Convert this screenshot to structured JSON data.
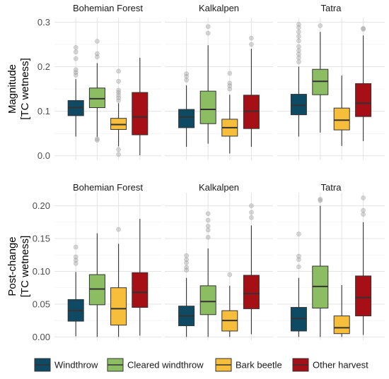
{
  "colors": {
    "Windthrow": "#0e4a63",
    "Cleared windthrow": "#8dbd63",
    "Bark beetle": "#f7be3b",
    "Other harvest": "#a50f15"
  },
  "legend": {
    "items": [
      {
        "name": "Windthrow"
      },
      {
        "name": "Cleared windthrow"
      },
      {
        "name": "Bark beetle"
      },
      {
        "name": "Other harvest"
      }
    ],
    "position": "bottom"
  },
  "chart_data": [
    {
      "type": "box",
      "row": "magnitude",
      "ylabel": [
        "Magnitude",
        "[TC wetness]"
      ],
      "ylim": [
        -0.01,
        0.31
      ],
      "yticks": [
        0.0,
        0.1,
        0.2,
        0.3
      ],
      "ytick_labels": [
        "0.0",
        "0.1",
        "0.2",
        "0.3"
      ],
      "categories": [
        "Windthrow",
        "Cleared windthrow",
        "Bark beetle",
        "Other harvest"
      ],
      "panels": [
        {
          "title": "Bohemian Forest",
          "boxes": [
            {
              "category": "Windthrow",
              "whislo": 0.043,
              "q1": 0.09,
              "med": 0.108,
              "q3": 0.124,
              "whishi": 0.172,
              "outliers": [
                0.181,
                0.187,
                0.193,
                0.218,
                0.233,
                0.243
              ]
            },
            {
              "category": "Cleared windthrow",
              "whislo": 0.042,
              "q1": 0.108,
              "med": 0.128,
              "q3": 0.152,
              "whishi": 0.208,
              "outliers": [
                0.035,
                0.038,
                0.222,
                0.229,
                0.257
              ]
            },
            {
              "category": "Bark beetle",
              "whislo": 0.021,
              "q1": 0.059,
              "med": 0.07,
              "q3": 0.084,
              "whishi": 0.118,
              "outliers": [
                0.003,
                0.014,
                0.124,
                0.13,
                0.136,
                0.142,
                0.147,
                0.167,
                0.19
              ]
            },
            {
              "category": "Other harvest",
              "whislo": 0.001,
              "q1": 0.047,
              "med": 0.087,
              "q3": 0.142,
              "whishi": 0.22,
              "outliers": []
            }
          ]
        },
        {
          "title": "Kalkalpen",
          "boxes": [
            {
              "category": "Windthrow",
              "whislo": 0.02,
              "q1": 0.063,
              "med": 0.087,
              "q3": 0.104,
              "whishi": 0.158,
              "outliers": [
                0.17,
                0.178,
                0.184
              ]
            },
            {
              "category": "Cleared windthrow",
              "whislo": 0.027,
              "q1": 0.072,
              "med": 0.104,
              "q3": 0.145,
              "whishi": 0.248,
              "outliers": [
                0.275,
                0.29
              ]
            },
            {
              "category": "Bark beetle",
              "whislo": 0.005,
              "q1": 0.044,
              "med": 0.063,
              "q3": 0.082,
              "whishi": 0.137,
              "outliers": [
                0.15,
                0.157,
                0.163,
                0.185
              ]
            },
            {
              "category": "Other harvest",
              "whislo": 0.02,
              "q1": 0.061,
              "med": 0.1,
              "q3": 0.136,
              "whishi": 0.24,
              "outliers": [
                0.25,
                0.264
              ]
            }
          ]
        },
        {
          "title": "Tatra",
          "boxes": [
            {
              "category": "Windthrow",
              "whislo": 0.043,
              "q1": 0.092,
              "med": 0.113,
              "q3": 0.138,
              "whishi": 0.2,
              "outliers": [
                0.211,
                0.22,
                0.228,
                0.236,
                0.245,
                0.258,
                0.268,
                0.278,
                0.288,
                0.295
              ]
            },
            {
              "category": "Cleared windthrow",
              "whislo": 0.052,
              "q1": 0.137,
              "med": 0.167,
              "q3": 0.194,
              "whishi": 0.278,
              "outliers": [
                0.292
              ]
            },
            {
              "category": "Bark beetle",
              "whislo": 0.022,
              "q1": 0.058,
              "med": 0.08,
              "q3": 0.107,
              "whishi": 0.18,
              "outliers": []
            },
            {
              "category": "Other harvest",
              "whislo": 0.033,
              "q1": 0.088,
              "med": 0.118,
              "q3": 0.162,
              "whishi": 0.27,
              "outliers": [
                0.284,
                0.286
              ]
            }
          ]
        }
      ]
    },
    {
      "type": "box",
      "row": "post-change",
      "ylabel": [
        "Post-change",
        "[TC wetness]"
      ],
      "ylim": [
        -0.005,
        0.22
      ],
      "yticks": [
        0.0,
        0.05,
        0.1,
        0.15,
        0.2
      ],
      "ytick_labels": [
        "0.00",
        "0.05",
        "0.10",
        "0.15",
        "0.20"
      ],
      "categories": [
        "Windthrow",
        "Cleared windthrow",
        "Bark beetle",
        "Other harvest"
      ],
      "panels": [
        {
          "title": "Bohemian Forest",
          "boxes": [
            {
              "category": "Windthrow",
              "whislo": 0.001,
              "q1": 0.024,
              "med": 0.04,
              "q3": 0.057,
              "whishi": 0.099,
              "outliers": [
                0.112,
                0.117,
                0.122,
                0.137
              ]
            },
            {
              "category": "Cleared windthrow",
              "whislo": 0.0,
              "q1": 0.049,
              "med": 0.073,
              "q3": 0.095,
              "whishi": 0.158,
              "outliers": []
            },
            {
              "category": "Bark beetle",
              "whislo": 0.0,
              "q1": 0.018,
              "med": 0.043,
              "q3": 0.075,
              "whishi": 0.142,
              "outliers": [
                0.164
              ]
            },
            {
              "category": "Other harvest",
              "whislo": 0.002,
              "q1": 0.045,
              "med": 0.068,
              "q3": 0.098,
              "whishi": 0.18,
              "outliers": []
            }
          ]
        },
        {
          "title": "Kalkalpen",
          "boxes": [
            {
              "category": "Windthrow",
              "whislo": 0.0,
              "q1": 0.017,
              "med": 0.032,
              "q3": 0.047,
              "whishi": 0.09,
              "outliers": [
                0.102,
                0.106,
                0.113,
                0.118,
                0.124
              ]
            },
            {
              "category": "Cleared windthrow",
              "whislo": 0.0,
              "q1": 0.034,
              "med": 0.054,
              "q3": 0.078,
              "whishi": 0.135,
              "outliers": [
                0.152,
                0.163,
                0.169,
                0.178,
                0.188
              ]
            },
            {
              "category": "Bark beetle",
              "whislo": 0.0,
              "q1": 0.009,
              "med": 0.025,
              "q3": 0.04,
              "whishi": 0.078,
              "outliers": [
                0.095
              ]
            },
            {
              "category": "Other harvest",
              "whislo": 0.004,
              "q1": 0.043,
              "med": 0.066,
              "q3": 0.094,
              "whishi": 0.17,
              "outliers": [
                0.182,
                0.19,
                0.2
              ]
            }
          ]
        },
        {
          "title": "Tatra",
          "boxes": [
            {
              "category": "Windthrow",
              "whislo": 0.0,
              "q1": 0.009,
              "med": 0.028,
              "q3": 0.045,
              "whishi": 0.09,
              "outliers": [
                0.107,
                0.118,
                0.123,
                0.157
              ]
            },
            {
              "category": "Cleared windthrow",
              "whislo": 0.0,
              "q1": 0.044,
              "med": 0.077,
              "q3": 0.108,
              "whishi": 0.2,
              "outliers": [
                0.208,
                0.21
              ]
            },
            {
              "category": "Bark beetle",
              "whislo": 0.0,
              "q1": 0.005,
              "med": 0.014,
              "q3": 0.032,
              "whishi": 0.079,
              "outliers": []
            },
            {
              "category": "Other harvest",
              "whislo": 0.003,
              "q1": 0.032,
              "med": 0.06,
              "q3": 0.093,
              "whishi": 0.175,
              "outliers": [
                0.187,
                0.193,
                0.212
              ]
            }
          ]
        }
      ]
    }
  ]
}
